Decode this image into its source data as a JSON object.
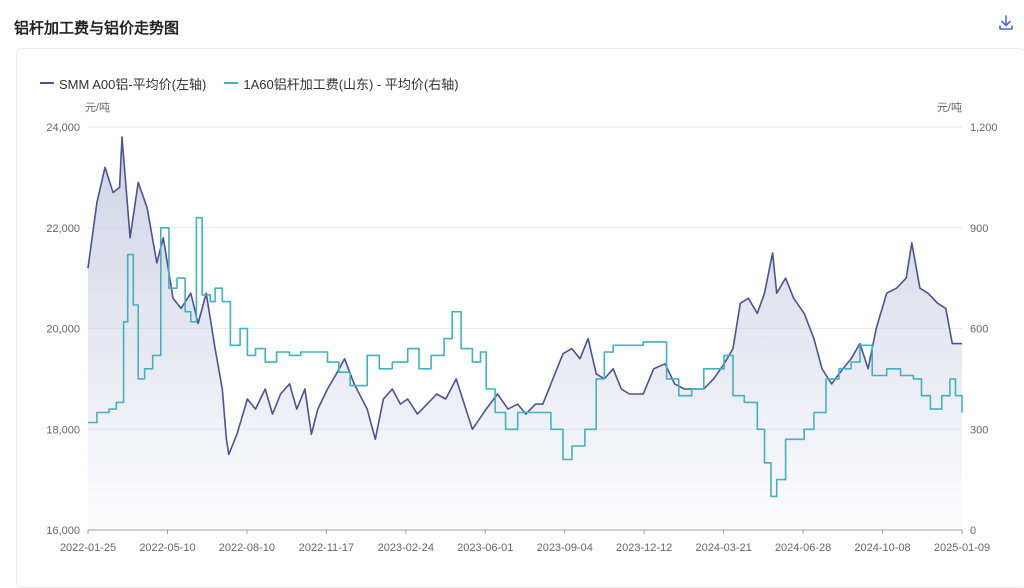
{
  "page": {
    "title": "铝杆加工费与铝价走势图"
  },
  "icons": {
    "download": "download-icon"
  },
  "colors": {
    "aluminum": "#4b5394",
    "fee": "#3fb3c2",
    "area_top": "#c7cbe0",
    "grid": "#e8eaf0",
    "axis_text": "#666666"
  },
  "chart_data": {
    "type": "line",
    "legend_position": "top-left",
    "x_labels": [
      "2022-01-25",
      "2022-05-10",
      "2022-08-10",
      "2022-11-17",
      "2023-02-24",
      "2023-06-01",
      "2023-09-04",
      "2023-12-12",
      "2024-03-21",
      "2024-06-28",
      "2024-10-08",
      "2025-01-09"
    ],
    "y_left": {
      "unit": "元/吨",
      "range": [
        16000,
        24000
      ],
      "ticks": [
        "16,000",
        "18,000",
        "20,000",
        "22,000",
        "24,000"
      ]
    },
    "y_right": {
      "unit": "元/吨",
      "range": [
        0,
        1200
      ],
      "ticks": [
        "0",
        "300",
        "600",
        "900",
        "1,200"
      ]
    },
    "grid": true,
    "series": [
      {
        "name": "SMM A00铝-平均价(左轴)",
        "axis": "left",
        "area": true,
        "points": [
          [
            "2022-01-25",
            21200
          ],
          [
            "2022-02-05",
            22500
          ],
          [
            "2022-02-15",
            23200
          ],
          [
            "2022-02-25",
            22700
          ],
          [
            "2022-03-05",
            22800
          ],
          [
            "2022-03-08",
            23800
          ],
          [
            "2022-03-18",
            21800
          ],
          [
            "2022-03-28",
            22900
          ],
          [
            "2022-04-08",
            22400
          ],
          [
            "2022-04-20",
            21300
          ],
          [
            "2022-04-28",
            21800
          ],
          [
            "2022-05-10",
            20600
          ],
          [
            "2022-05-20",
            20400
          ],
          [
            "2022-06-01",
            20700
          ],
          [
            "2022-06-10",
            20100
          ],
          [
            "2022-06-20",
            20700
          ],
          [
            "2022-07-01",
            19600
          ],
          [
            "2022-07-10",
            18800
          ],
          [
            "2022-07-15",
            17800
          ],
          [
            "2022-07-18",
            17500
          ],
          [
            "2022-07-28",
            17900
          ],
          [
            "2022-08-10",
            18600
          ],
          [
            "2022-08-20",
            18400
          ],
          [
            "2022-09-01",
            18800
          ],
          [
            "2022-09-10",
            18300
          ],
          [
            "2022-09-20",
            18700
          ],
          [
            "2022-10-01",
            18900
          ],
          [
            "2022-10-10",
            18400
          ],
          [
            "2022-10-20",
            18800
          ],
          [
            "2022-10-28",
            17900
          ],
          [
            "2022-11-05",
            18400
          ],
          [
            "2022-11-17",
            18800
          ],
          [
            "2022-11-28",
            19100
          ],
          [
            "2022-12-08",
            19400
          ],
          [
            "2022-12-20",
            18900
          ],
          [
            "2023-01-05",
            18400
          ],
          [
            "2023-01-15",
            17800
          ],
          [
            "2023-01-25",
            18600
          ],
          [
            "2023-02-05",
            18800
          ],
          [
            "2023-02-15",
            18500
          ],
          [
            "2023-02-24",
            18600
          ],
          [
            "2023-03-08",
            18300
          ],
          [
            "2023-03-20",
            18500
          ],
          [
            "2023-04-01",
            18700
          ],
          [
            "2023-04-12",
            18600
          ],
          [
            "2023-04-25",
            19000
          ],
          [
            "2023-05-05",
            18500
          ],
          [
            "2023-05-15",
            18000
          ],
          [
            "2023-06-01",
            18400
          ],
          [
            "2023-06-15",
            18700
          ],
          [
            "2023-06-28",
            18400
          ],
          [
            "2023-07-10",
            18500
          ],
          [
            "2023-07-20",
            18300
          ],
          [
            "2023-08-01",
            18500
          ],
          [
            "2023-08-10",
            18500
          ],
          [
            "2023-08-20",
            18900
          ],
          [
            "2023-09-04",
            19500
          ],
          [
            "2023-09-15",
            19600
          ],
          [
            "2023-09-25",
            19400
          ],
          [
            "2023-10-05",
            19800
          ],
          [
            "2023-10-15",
            19100
          ],
          [
            "2023-10-25",
            19000
          ],
          [
            "2023-11-05",
            19200
          ],
          [
            "2023-11-15",
            18800
          ],
          [
            "2023-11-25",
            18700
          ],
          [
            "2023-12-12",
            18700
          ],
          [
            "2023-12-25",
            19200
          ],
          [
            "2024-01-08",
            19300
          ],
          [
            "2024-01-20",
            18900
          ],
          [
            "2024-02-01",
            18800
          ],
          [
            "2024-02-12",
            18800
          ],
          [
            "2024-02-25",
            18800
          ],
          [
            "2024-03-08",
            19000
          ],
          [
            "2024-03-21",
            19300
          ],
          [
            "2024-04-01",
            19600
          ],
          [
            "2024-04-10",
            20500
          ],
          [
            "2024-04-20",
            20600
          ],
          [
            "2024-05-01",
            20300
          ],
          [
            "2024-05-10",
            20700
          ],
          [
            "2024-05-20",
            21500
          ],
          [
            "2024-05-25",
            20700
          ],
          [
            "2024-06-05",
            21000
          ],
          [
            "2024-06-15",
            20600
          ],
          [
            "2024-06-28",
            20300
          ],
          [
            "2024-07-10",
            19800
          ],
          [
            "2024-07-20",
            19200
          ],
          [
            "2024-08-01",
            18900
          ],
          [
            "2024-08-10",
            19100
          ],
          [
            "2024-08-25",
            19400
          ],
          [
            "2024-09-05",
            19700
          ],
          [
            "2024-09-15",
            19200
          ],
          [
            "2024-09-25",
            20000
          ],
          [
            "2024-10-08",
            20700
          ],
          [
            "2024-10-20",
            20800
          ],
          [
            "2024-11-01",
            21000
          ],
          [
            "2024-11-08",
            21700
          ],
          [
            "2024-11-18",
            20800
          ],
          [
            "2024-11-28",
            20700
          ],
          [
            "2024-12-10",
            20500
          ],
          [
            "2024-12-20",
            20400
          ],
          [
            "2024-12-28",
            19700
          ],
          [
            "2025-01-09",
            19700
          ]
        ]
      },
      {
        "name": "1A60铝杆加工费(山东) - 平均价(右轴)",
        "axis": "right",
        "area": false,
        "points": [
          [
            "2022-01-25",
            320
          ],
          [
            "2022-02-05",
            350
          ],
          [
            "2022-02-20",
            360
          ],
          [
            "2022-03-01",
            380
          ],
          [
            "2022-03-10",
            620
          ],
          [
            "2022-03-15",
            820
          ],
          [
            "2022-03-22",
            670
          ],
          [
            "2022-03-28",
            450
          ],
          [
            "2022-04-05",
            480
          ],
          [
            "2022-04-15",
            520
          ],
          [
            "2022-04-25",
            900
          ],
          [
            "2022-05-05",
            720
          ],
          [
            "2022-05-15",
            750
          ],
          [
            "2022-05-25",
            650
          ],
          [
            "2022-06-01",
            620
          ],
          [
            "2022-06-08",
            930
          ],
          [
            "2022-06-15",
            700
          ],
          [
            "2022-06-25",
            680
          ],
          [
            "2022-07-01",
            720
          ],
          [
            "2022-07-10",
            680
          ],
          [
            "2022-07-20",
            550
          ],
          [
            "2022-08-01",
            600
          ],
          [
            "2022-08-10",
            520
          ],
          [
            "2022-08-20",
            540
          ],
          [
            "2022-09-01",
            500
          ],
          [
            "2022-09-15",
            530
          ],
          [
            "2022-10-01",
            520
          ],
          [
            "2022-10-15",
            530
          ],
          [
            "2022-11-01",
            530
          ],
          [
            "2022-11-17",
            500
          ],
          [
            "2022-12-01",
            470
          ],
          [
            "2022-12-15",
            430
          ],
          [
            "2023-01-05",
            520
          ],
          [
            "2023-01-20",
            480
          ],
          [
            "2023-02-05",
            500
          ],
          [
            "2023-02-24",
            540
          ],
          [
            "2023-03-10",
            480
          ],
          [
            "2023-03-25",
            520
          ],
          [
            "2023-04-10",
            570
          ],
          [
            "2023-04-20",
            650
          ],
          [
            "2023-05-01",
            540
          ],
          [
            "2023-05-15",
            500
          ],
          [
            "2023-05-25",
            530
          ],
          [
            "2023-06-01",
            420
          ],
          [
            "2023-06-12",
            350
          ],
          [
            "2023-06-25",
            300
          ],
          [
            "2023-07-10",
            350
          ],
          [
            "2023-08-01",
            350
          ],
          [
            "2023-08-20",
            300
          ],
          [
            "2023-09-04",
            210
          ],
          [
            "2023-09-15",
            250
          ],
          [
            "2023-10-01",
            300
          ],
          [
            "2023-10-15",
            450
          ],
          [
            "2023-10-25",
            530
          ],
          [
            "2023-11-05",
            550
          ],
          [
            "2023-11-20",
            550
          ],
          [
            "2023-12-12",
            560
          ],
          [
            "2023-12-25",
            560
          ],
          [
            "2024-01-10",
            450
          ],
          [
            "2024-01-25",
            400
          ],
          [
            "2024-02-10",
            420
          ],
          [
            "2024-02-25",
            480
          ],
          [
            "2024-03-21",
            520
          ],
          [
            "2024-04-01",
            400
          ],
          [
            "2024-04-15",
            380
          ],
          [
            "2024-05-01",
            300
          ],
          [
            "2024-05-10",
            200
          ],
          [
            "2024-05-18",
            100
          ],
          [
            "2024-05-25",
            150
          ],
          [
            "2024-06-05",
            270
          ],
          [
            "2024-06-28",
            300
          ],
          [
            "2024-07-10",
            350
          ],
          [
            "2024-07-25",
            450
          ],
          [
            "2024-08-10",
            480
          ],
          [
            "2024-08-25",
            500
          ],
          [
            "2024-09-05",
            550
          ],
          [
            "2024-09-20",
            460
          ],
          [
            "2024-10-08",
            480
          ],
          [
            "2024-10-25",
            460
          ],
          [
            "2024-11-10",
            450
          ],
          [
            "2024-11-20",
            400
          ],
          [
            "2024-12-01",
            360
          ],
          [
            "2024-12-15",
            400
          ],
          [
            "2024-12-25",
            450
          ],
          [
            "2025-01-01",
            400
          ],
          [
            "2025-01-09",
            350
          ]
        ]
      }
    ]
  }
}
